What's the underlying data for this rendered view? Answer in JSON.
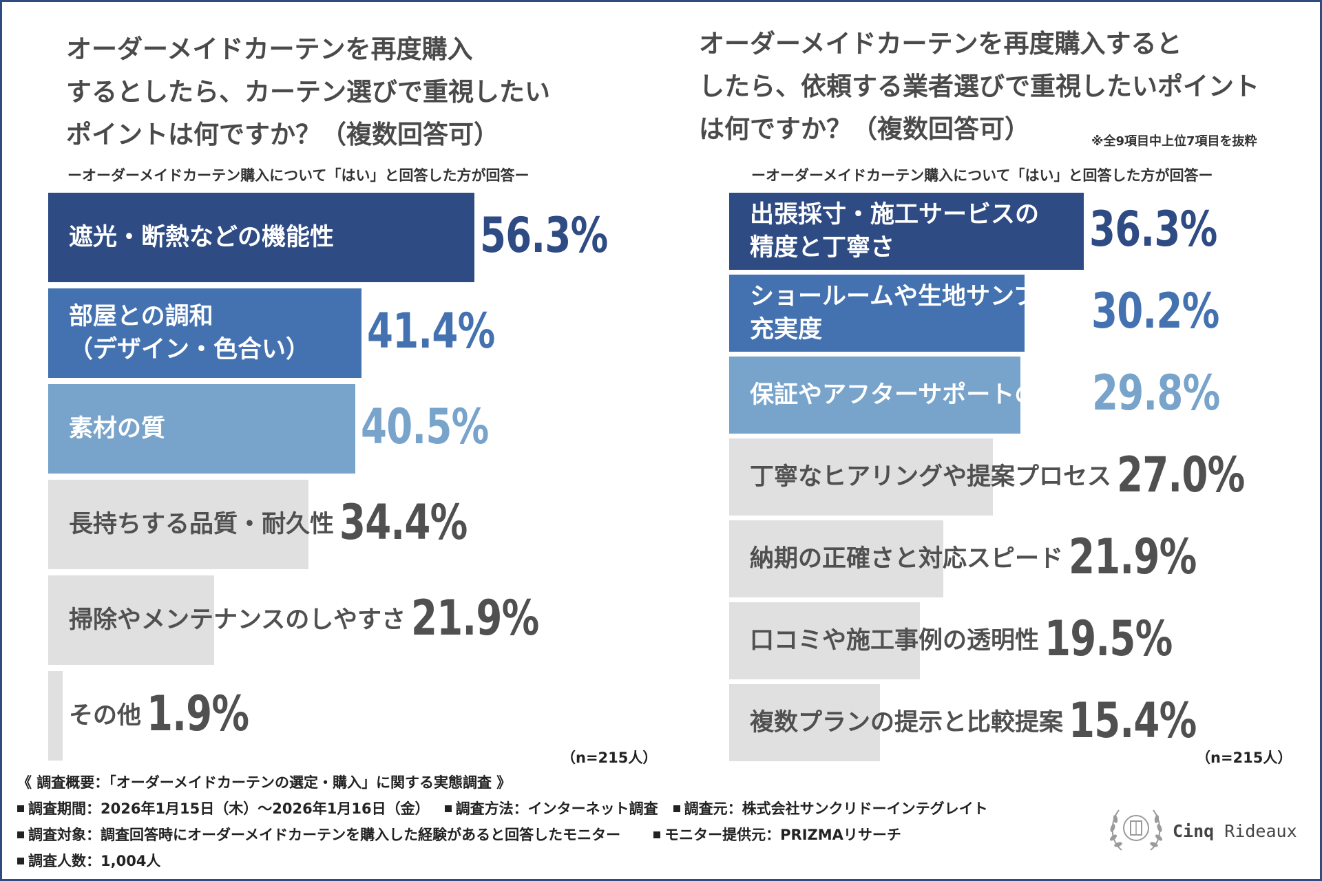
{
  "left_panel": {
    "title": "オーダーメイドカーテンを再度購入\nするとしたら、カーテン選びで重視したい\nポイントは何ですか？（複数回答可）",
    "subtitle": "ーオーダーメイドカーテン購入について「はい」と回答した方が回答ー",
    "sample": "（n=215人）"
  },
  "right_panel": {
    "title": "オーダーメイドカーテンを再度購入すると\nしたら、依頼する業者選びで重視したいポイント\nは何ですか？（複数回答可）",
    "note": "※全9項目中上位7項目を抜粋",
    "subtitle": "ーオーダーメイドカーテン購入について「はい」と回答した方が回答ー",
    "sample": "（n=215人）"
  },
  "colors": {
    "rank1": "#2e4b84",
    "rank2": "#4472b0",
    "rank3": "#78a3ca",
    "other_bar": "#e0e0e0",
    "other_text": "#505050",
    "frame": "#2f4c82"
  },
  "chart_data": [
    {
      "type": "bar",
      "orientation": "horizontal",
      "categories": [
        "遮光・断熱などの機能性",
        "部屋との調和\n（デザイン・色合い）",
        "素材の質",
        "長持ちする品質・耐久性",
        "掃除やメンテナンスのしやすさ",
        "その他"
      ],
      "values": [
        56.3,
        41.4,
        40.5,
        34.4,
        21.9,
        1.9
      ],
      "value_labels": [
        "56.3%",
        "41.4%",
        "40.5%",
        "34.4%",
        "21.9%",
        "1.9%"
      ],
      "unit": "%"
    },
    {
      "type": "bar",
      "orientation": "horizontal",
      "categories": [
        "出張採寸・施工サービスの\n精度と丁寧さ",
        "ショールームや生地サンプルの\n充実度",
        "保証やアフターサポートの内容",
        "丁寧なヒアリングや提案プロセス",
        "納期の正確さと対応スピード",
        "口コミや施工事例の透明性",
        "複数プランの提示と比較提案"
      ],
      "values": [
        36.3,
        30.2,
        29.8,
        27.0,
        21.9,
        19.5,
        15.4
      ],
      "value_labels": [
        "36.3%",
        "30.2%",
        "29.8%",
        "27.0%",
        "21.9%",
        "19.5%",
        "15.4%"
      ],
      "unit": "%"
    }
  ],
  "survey": {
    "heading": "《 調査概要：「オーダーメイドカーテンの選定・購入」に関する実態調査 》",
    "period": "調査期間：2026年1月15日（木）～2026年1月16日（金）",
    "method": "調査方法：インターネット調査",
    "source": "調査元：株式会社サンクリドーインテグレイト",
    "target": "調査対象：調査回答時にオーダーメイドカーテンを購入した経験があると回答したモニター",
    "provider": "モニター提供元：PRIZMAリサーチ",
    "count": "調査人数：1,004人"
  },
  "brand": {
    "name_bold": "Cinq",
    "name_rest": " Rideaux"
  }
}
